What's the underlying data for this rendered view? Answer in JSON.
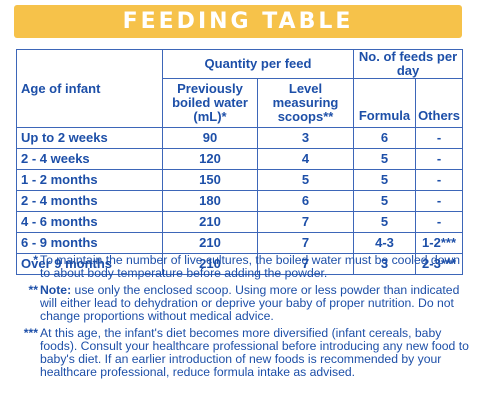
{
  "banner": {
    "title": "FEEDING TABLE"
  },
  "header": {
    "group_quantity": "Quantity per feed",
    "group_feeds": "No. of feeds per day",
    "age": "Age of infant",
    "water_line1": "Previously",
    "water_line2": "boiled water",
    "water_line3": "(mL)*",
    "scoops_line1": "Level",
    "scoops_line2": "measuring",
    "scoops_line3": "scoops**",
    "formula": "Formula",
    "others": "Others"
  },
  "rows": [
    {
      "age": "Up to 2 weeks",
      "water": "90",
      "scoops": "3",
      "formula": "6",
      "others": "-"
    },
    {
      "age": "2 - 4 weeks",
      "water": "120",
      "scoops": "4",
      "formula": "5",
      "others": "-"
    },
    {
      "age": "1 - 2 months",
      "water": "150",
      "scoops": "5",
      "formula": "5",
      "others": "-"
    },
    {
      "age": "2 - 4 months",
      "water": "180",
      "scoops": "6",
      "formula": "5",
      "others": "-"
    },
    {
      "age": "4 - 6 months",
      "water": "210",
      "scoops": "7",
      "formula": "5",
      "others": "-"
    },
    {
      "age": "6 - 9 months",
      "water": "210",
      "scoops": "7",
      "formula": "4-3",
      "others": "1-2***"
    },
    {
      "age": "Over 9 months",
      "water": "210",
      "scoops": "7",
      "formula": "3",
      "others": "2-3***"
    }
  ],
  "notes": [
    {
      "mark": "*",
      "lead": "",
      "text": "To maintain the number of live cultures, the boiled water must be cooled down to about body temperature before adding the powder."
    },
    {
      "mark": "**",
      "lead": "Note:",
      "text": "use only the enclosed scoop. Using more or less powder than indicated will either lead to dehydration or deprive your baby of proper nutrition. Do not change proportions without medical advice."
    },
    {
      "mark": "***",
      "lead": "",
      "text": "At this age, the infant's diet becomes more diversified (infant cereals, baby foods). Consult your healthcare professional before introducing any new food to baby's diet. If an earlier introduction of new foods is recommended by your healthcare professional, reduce formula intake as advised."
    }
  ]
}
